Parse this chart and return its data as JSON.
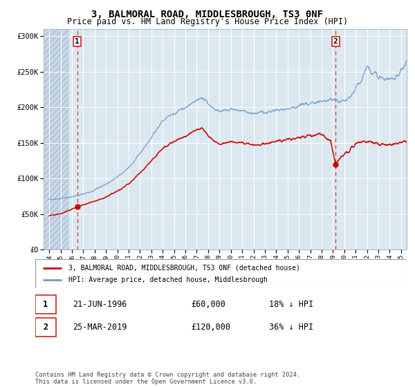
{
  "title": "3, BALMORAL ROAD, MIDDLESBROUGH, TS3 0NF",
  "subtitle": "Price paid vs. HM Land Registry's House Price Index (HPI)",
  "ylim": [
    0,
    310000
  ],
  "yticks": [
    0,
    50000,
    100000,
    150000,
    200000,
    250000,
    300000
  ],
  "ylabel_values": [
    "£0",
    "£50K",
    "£100K",
    "£150K",
    "£200K",
    "£250K",
    "£300K"
  ],
  "xlim_start": 1993.5,
  "xlim_end": 2025.5,
  "hatch_end": 1995.7,
  "sale1_date": 1996.47,
  "sale1_price": 60000,
  "sale1_label": "1",
  "sale1_text": "21-JUN-1996",
  "sale1_price_text": "£60,000",
  "sale1_hpi_text": "18% ↓ HPI",
  "sale2_date": 2019.23,
  "sale2_price": 120000,
  "sale2_label": "2",
  "sale2_text": "25-MAR-2019",
  "sale2_price_text": "£120,000",
  "sale2_hpi_text": "36% ↓ HPI",
  "legend_line1": "3, BALMORAL ROAD, MIDDLESBROUGH, TS3 0NF (detached house)",
  "legend_line2": "HPI: Average price, detached house, Middlesbrough",
  "footer": "Contains HM Land Registry data © Crown copyright and database right 2024.\nThis data is licensed under the Open Government Licence v3.0.",
  "hatch_color": "#d0dde8",
  "plot_bg": "#dce8f0",
  "red_line_color": "#cc0000",
  "blue_line_color": "#6699cc",
  "dashed_red": "#dd4444",
  "grid_color": "#c0cdd8",
  "white_grid": "#ffffff"
}
